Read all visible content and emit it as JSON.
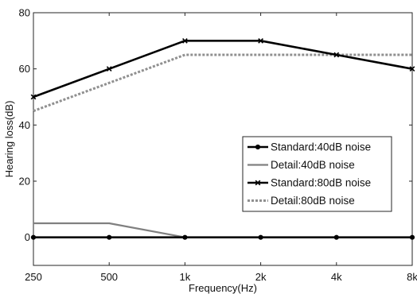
{
  "chart_data": {
    "type": "line",
    "title": "",
    "xlabel": "Frequency(Hz)",
    "ylabel": "Hearing loss(dB)",
    "categories": [
      "250",
      "500",
      "1k",
      "2k",
      "4k",
      "8k"
    ],
    "ylim": [
      -10,
      80
    ],
    "yticks": [
      0,
      20,
      40,
      60,
      80
    ],
    "grid": false,
    "legend_position": "center-right",
    "series": [
      {
        "name": "Standard:40dB noise",
        "values": [
          0,
          0,
          0,
          0,
          0,
          0
        ],
        "color": "#000000",
        "style": "solid",
        "marker": "dot"
      },
      {
        "name": "Detail:40dB noise",
        "values": [
          5,
          5,
          0,
          0,
          0,
          0
        ],
        "color": "#808080",
        "style": "solid",
        "marker": "none"
      },
      {
        "name": "Standard:80dB noise",
        "values": [
          50,
          60,
          70,
          70,
          65,
          60
        ],
        "color": "#000000",
        "style": "solid",
        "marker": "x"
      },
      {
        "name": "Detail:80dB noise",
        "values": [
          45,
          55,
          65,
          65,
          65,
          65
        ],
        "color": "#909090",
        "style": "dotted",
        "marker": "none"
      }
    ]
  }
}
